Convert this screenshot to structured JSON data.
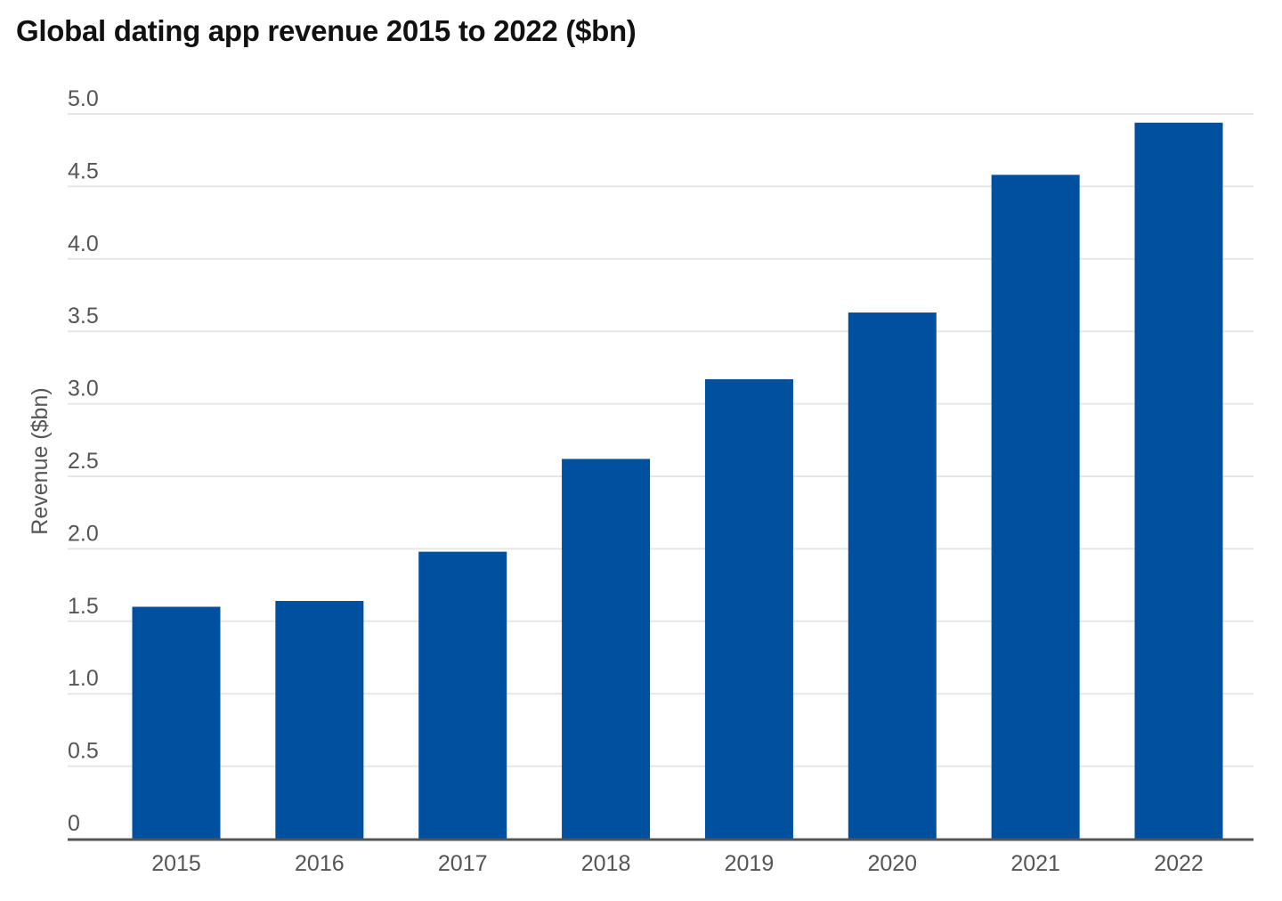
{
  "chart_data": {
    "type": "bar",
    "title": "Global dating app revenue 2015 to 2022 ($bn)",
    "xlabel": "",
    "ylabel": "Revenue ($bn)",
    "categories": [
      "2015",
      "2016",
      "2017",
      "2018",
      "2019",
      "2020",
      "2021",
      "2022"
    ],
    "values": [
      1.6,
      1.64,
      1.98,
      2.62,
      3.17,
      3.63,
      4.58,
      4.94
    ],
    "ylim": [
      0,
      5.0
    ],
    "yticks": [
      "0",
      "0.5",
      "1.0",
      "1.5",
      "2.0",
      "2.5",
      "3.0",
      "3.5",
      "4.0",
      "4.5",
      "5.0"
    ],
    "grid": true,
    "legend": "none",
    "colors": {
      "bar": "#0050a0",
      "grid": "#e6e6e6",
      "axis": "#555555"
    }
  }
}
